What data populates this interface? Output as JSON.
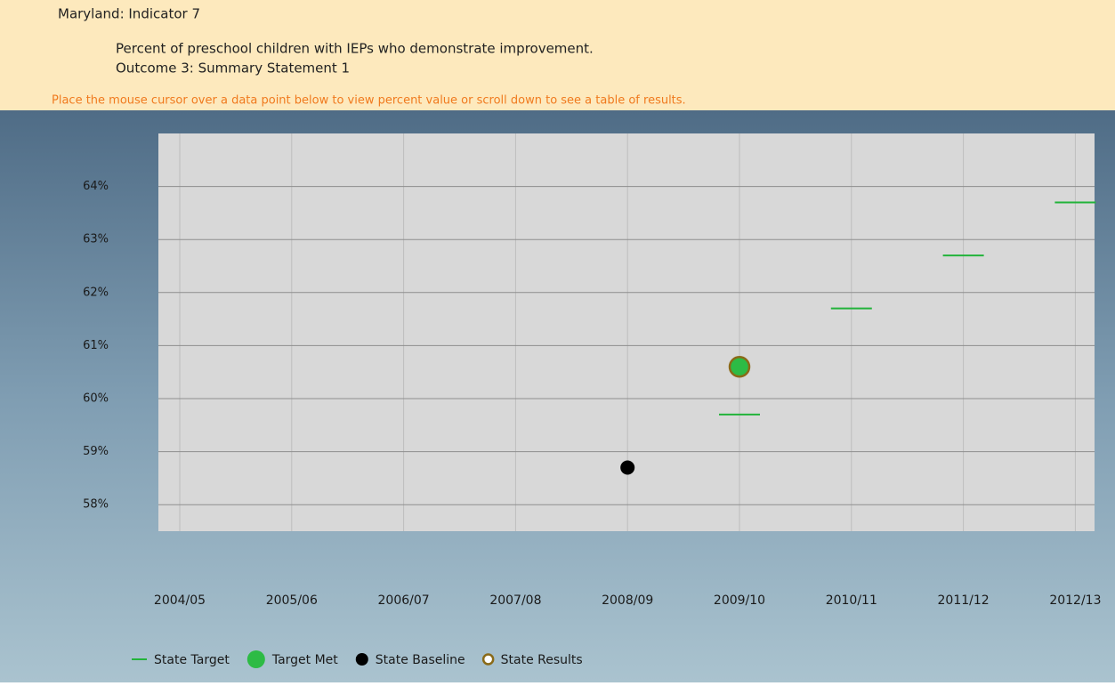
{
  "header": {
    "title": "Maryland: Indicator 7",
    "subtitle": "Percent of preschool children with IEPs who demonstrate improvement.",
    "outcome": "Outcome 3: Summary Statement 1",
    "note": "Place the mouse cursor over a data point below to view percent value or scroll down to see a table of results."
  },
  "chart_data": {
    "type": "scatter",
    "categories": [
      "2004/05",
      "2005/06",
      "2006/07",
      "2007/08",
      "2008/09",
      "2009/10",
      "2010/11",
      "2011/12",
      "2012/13"
    ],
    "series": [
      {
        "name": "State Target",
        "color": "#22b33a",
        "marker": "dash",
        "values": [
          null,
          null,
          null,
          null,
          null,
          59.7,
          61.7,
          62.7,
          63.7
        ]
      },
      {
        "name": "Target Met",
        "color": "#2dbb45",
        "marker": "circle",
        "values": [
          null,
          null,
          null,
          null,
          null,
          60.6,
          null,
          null,
          null
        ]
      },
      {
        "name": "State Baseline",
        "color": "#000000",
        "marker": "dot",
        "values": [
          null,
          null,
          null,
          null,
          58.7,
          null,
          null,
          null,
          null
        ]
      },
      {
        "name": "State Results",
        "color": "#8a6a18",
        "marker": "ring",
        "values": [
          null,
          null,
          null,
          null,
          null,
          60.6,
          null,
          null,
          null
        ]
      }
    ],
    "ylim": [
      57.5,
      65
    ],
    "yticks": [
      {
        "value": 58,
        "label": "58%"
      },
      {
        "value": 59,
        "label": "59%"
      },
      {
        "value": 60,
        "label": "60%"
      },
      {
        "value": 61,
        "label": "61%"
      },
      {
        "value": 62,
        "label": "62%"
      },
      {
        "value": 63,
        "label": "63%"
      },
      {
        "value": 64,
        "label": "64%"
      }
    ],
    "grid": true
  }
}
